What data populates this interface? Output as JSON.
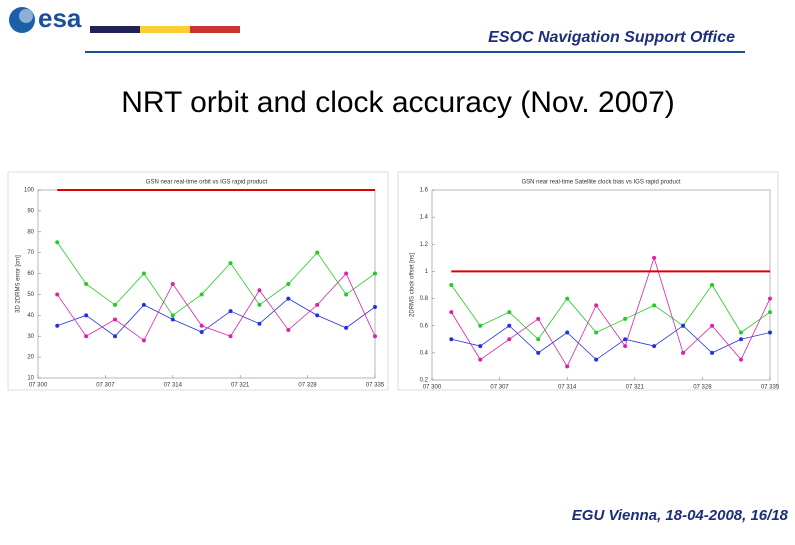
{
  "header": {
    "logo": "esa",
    "office": "ESOC Navigation Support Office"
  },
  "title": "NRT orbit and clock accuracy (Nov. 2007)",
  "chart_data": [
    {
      "type": "line",
      "title": "GSN near real-time orbit vs IGS rapid product",
      "y_label": "3D 2DRMS error [cm]",
      "x": [
        302,
        305,
        308,
        311,
        314,
        317,
        320,
        323,
        326,
        329,
        332,
        335
      ],
      "xlim": [
        300,
        335
      ],
      "xticks": [
        {
          "value": 300,
          "label": "07 300"
        },
        {
          "value": 307,
          "label": "07 307"
        },
        {
          "value": 314,
          "label": "07 314"
        },
        {
          "value": 321,
          "label": "07 321"
        },
        {
          "value": 328,
          "label": "07 328"
        },
        {
          "value": 335,
          "label": "07 335"
        }
      ],
      "ylim": [
        10,
        100
      ],
      "yticks": [
        10,
        20,
        30,
        40,
        50,
        60,
        70,
        80,
        90,
        100
      ],
      "reference": {
        "value": 100,
        "color": "#e00000"
      },
      "series": [
        {
          "color": "#22cc22",
          "values": [
            75,
            55,
            45,
            60,
            40,
            50,
            65,
            45,
            55,
            70,
            50,
            60
          ]
        },
        {
          "color": "#2233dd",
          "values": [
            35,
            40,
            30,
            45,
            38,
            32,
            42,
            36,
            48,
            40,
            34,
            44
          ]
        },
        {
          "color": "#dd22aa",
          "values": [
            50,
            30,
            38,
            28,
            55,
            35,
            30,
            52,
            33,
            45,
            60,
            30
          ]
        }
      ]
    },
    {
      "type": "line",
      "title": "GSN near real-time Satellite clock bias vs IGS rapid product",
      "y_label": "2DRMS clock offset [ns]",
      "x": [
        302,
        305,
        308,
        311,
        314,
        317,
        320,
        323,
        326,
        329,
        332,
        335
      ],
      "xlim": [
        300,
        335
      ],
      "xticks": [
        {
          "value": 300,
          "label": "07 300"
        },
        {
          "value": 307,
          "label": "07 307"
        },
        {
          "value": 314,
          "label": "07 314"
        },
        {
          "value": 321,
          "label": "07 321"
        },
        {
          "value": 328,
          "label": "07 328"
        },
        {
          "value": 335,
          "label": "07 335"
        }
      ],
      "ylim": [
        0.2,
        1.6
      ],
      "yticks": [
        0.2,
        0.4,
        0.6,
        0.8,
        1,
        1.2,
        1.4,
        1.6
      ],
      "reference": {
        "value": 1,
        "color": "#e00000"
      },
      "series": [
        {
          "color": "#22cc22",
          "values": [
            0.9,
            0.6,
            0.7,
            0.5,
            0.8,
            0.55,
            0.65,
            0.75,
            0.6,
            0.9,
            0.55,
            0.7
          ]
        },
        {
          "color": "#2233dd",
          "values": [
            0.5,
            0.45,
            0.6,
            0.4,
            0.55,
            0.35,
            0.5,
            0.45,
            0.6,
            0.4,
            0.5,
            0.55
          ]
        },
        {
          "color": "#dd22aa",
          "values": [
            0.7,
            0.35,
            0.5,
            0.65,
            0.3,
            0.75,
            0.45,
            1.1,
            0.4,
            0.6,
            0.35,
            0.8
          ]
        }
      ]
    }
  ],
  "footer": "EGU Vienna, 18-04-2008,  16/18"
}
